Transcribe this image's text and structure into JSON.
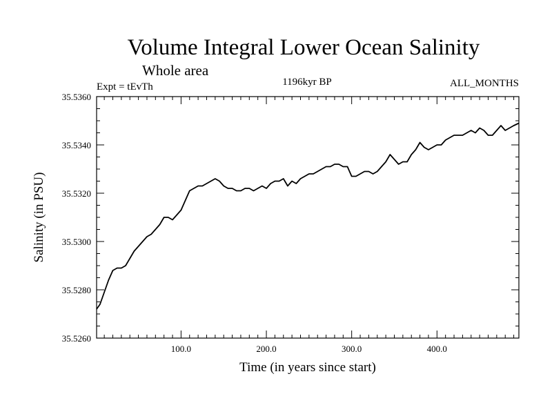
{
  "chart_data": {
    "type": "line",
    "title": "Volume Integral Lower Ocean Salinity",
    "subtitle": "Whole area",
    "experiment_label": "Expt = tEvTh",
    "period_label": "1196kyr BP",
    "months_label": "ALL_MONTHS",
    "xlabel": "Time (in years since start)",
    "ylabel": "Salinity (in PSU)",
    "xlim": [
      1,
      496
    ],
    "ylim": [
      35.526,
      35.536
    ],
    "x_ticks": [
      100,
      200,
      300,
      400
    ],
    "x_tick_labels": [
      "100.0",
      "200.0",
      "300.0",
      "400.0"
    ],
    "y_ticks": [
      35.526,
      35.528,
      35.53,
      35.532,
      35.534,
      35.536
    ],
    "y_tick_labels": [
      "35.5260",
      "35.5280",
      "35.5300",
      "35.5320",
      "35.5340",
      "35.5360"
    ],
    "series": [
      {
        "name": "salinity",
        "x": [
          1,
          5,
          10,
          15,
          20,
          25,
          30,
          35,
          40,
          45,
          50,
          55,
          60,
          65,
          70,
          75,
          80,
          85,
          90,
          95,
          100,
          105,
          110,
          115,
          120,
          125,
          130,
          135,
          140,
          145,
          150,
          155,
          160,
          165,
          170,
          175,
          180,
          185,
          190,
          195,
          200,
          205,
          210,
          215,
          220,
          225,
          230,
          235,
          240,
          245,
          250,
          255,
          260,
          265,
          270,
          275,
          280,
          285,
          290,
          295,
          300,
          305,
          310,
          315,
          320,
          325,
          330,
          335,
          340,
          345,
          350,
          355,
          360,
          365,
          370,
          375,
          380,
          385,
          390,
          395,
          400,
          405,
          410,
          415,
          420,
          425,
          430,
          435,
          440,
          445,
          450,
          455,
          460,
          465,
          470,
          475,
          480,
          485,
          490,
          496
        ],
        "y": [
          35.5272,
          35.5274,
          35.5279,
          35.5284,
          35.5288,
          35.5289,
          35.5289,
          35.529,
          35.5293,
          35.5296,
          35.5298,
          35.53,
          35.5302,
          35.5303,
          35.5305,
          35.5307,
          35.531,
          35.531,
          35.5309,
          35.5311,
          35.5313,
          35.5317,
          35.5321,
          35.5322,
          35.5323,
          35.5323,
          35.5324,
          35.5325,
          35.5326,
          35.5325,
          35.5323,
          35.5322,
          35.5322,
          35.5321,
          35.5321,
          35.5322,
          35.5322,
          35.5321,
          35.5322,
          35.5323,
          35.5322,
          35.5324,
          35.5325,
          35.5325,
          35.5326,
          35.5323,
          35.5325,
          35.5324,
          35.5326,
          35.5327,
          35.5328,
          35.5328,
          35.5329,
          35.533,
          35.5331,
          35.5331,
          35.5332,
          35.5332,
          35.5331,
          35.5331,
          35.5327,
          35.5327,
          35.5328,
          35.5329,
          35.5329,
          35.5328,
          35.5329,
          35.5331,
          35.5333,
          35.5336,
          35.5334,
          35.5332,
          35.5333,
          35.5333,
          35.5336,
          35.5338,
          35.5341,
          35.5339,
          35.5338,
          35.5339,
          35.534,
          35.534,
          35.5342,
          35.5343,
          35.5344,
          35.5344,
          35.5344,
          35.5345,
          35.5346,
          35.5345,
          35.5347,
          35.5346,
          35.5344,
          35.5344,
          35.5346,
          35.5348,
          35.5346,
          35.5347,
          35.5348,
          35.5349
        ]
      }
    ]
  }
}
